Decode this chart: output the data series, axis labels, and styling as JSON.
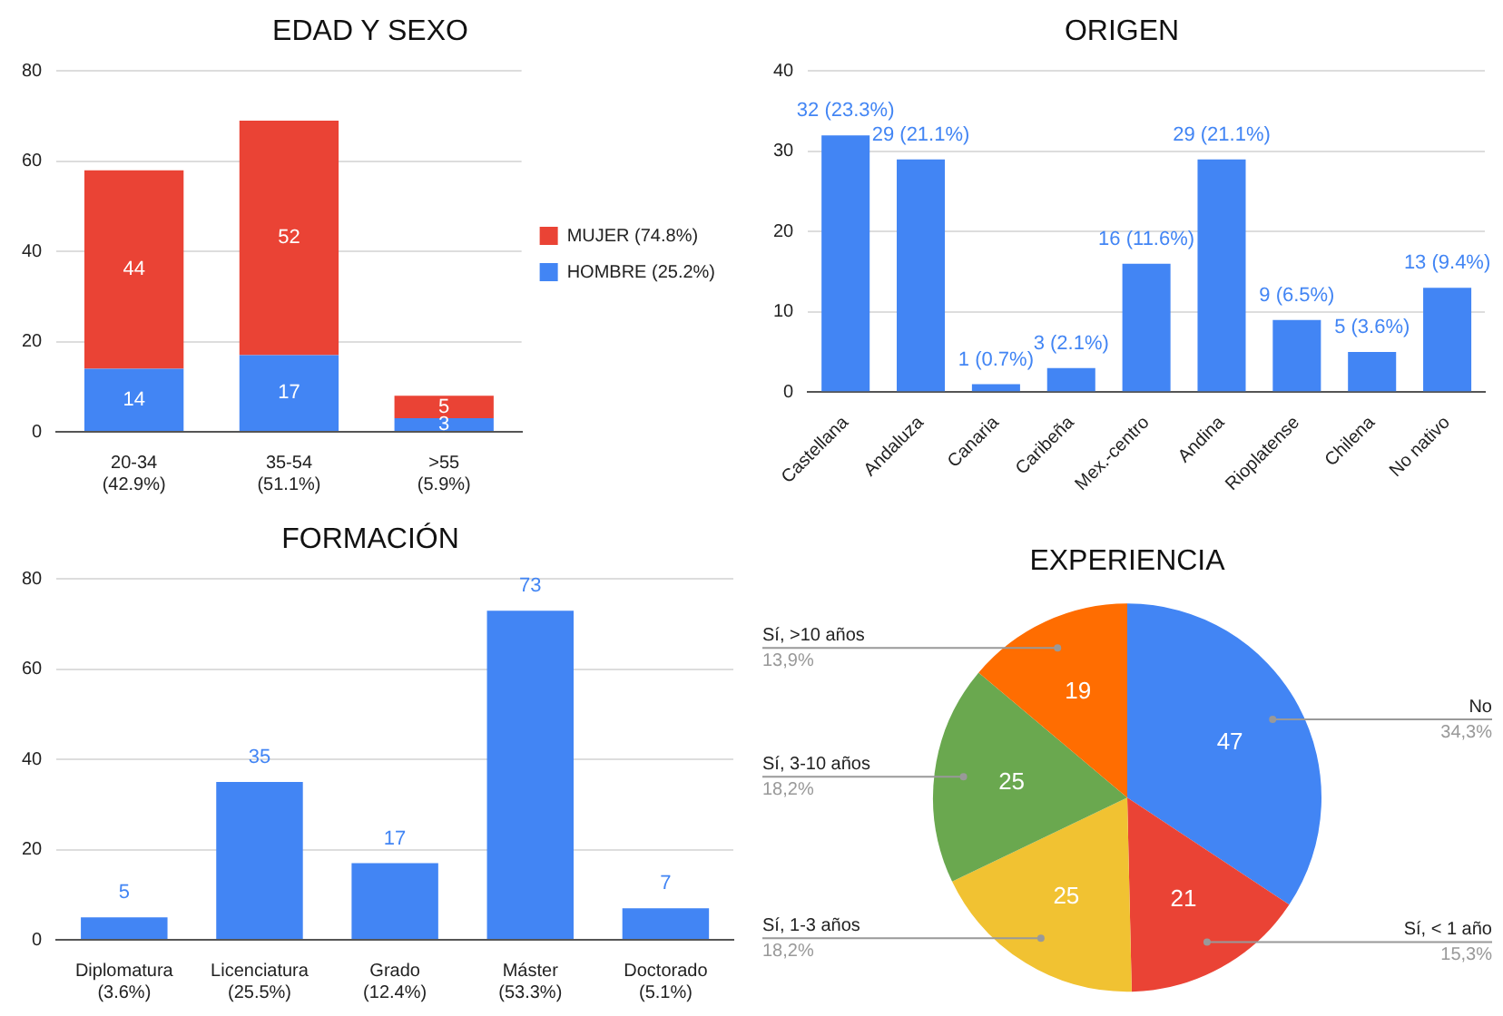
{
  "chart_data": [
    {
      "type": "bar",
      "title": "EDAD Y SEXO",
      "categories": [
        "20-34\n(42.9%)",
        "35-54\n(51.1%)",
        ">55\n(5.9%)"
      ],
      "stacked": true,
      "data_labels": true,
      "legend": "right",
      "grid": "y",
      "ylim": [
        0,
        80
      ],
      "yticks": [
        0,
        20,
        40,
        60,
        80
      ],
      "series": [
        {
          "name": "HOMBRE (25.2%)",
          "color": "#4285f4",
          "values": [
            14,
            17,
            3
          ]
        },
        {
          "name": "MUJER (74.8%)",
          "color": "#ea4335",
          "values": [
            44,
            52,
            5
          ]
        }
      ]
    },
    {
      "type": "bar",
      "title": "ORIGEN",
      "categories": [
        "Castellana",
        "Andaluza",
        "Canaria",
        "Caribeña",
        "Mex.-centro",
        "Andina",
        "Rioplatense",
        "Chilena",
        "No nativo"
      ],
      "grid": "y",
      "ylim": [
        0,
        40
      ],
      "yticks": [
        0,
        10,
        20,
        30,
        40
      ],
      "series": [
        {
          "color": "#4285f4",
          "values": [
            32,
            29,
            1,
            3,
            16,
            29,
            9,
            5,
            13
          ],
          "value_labels": [
            "32 (23.3%)",
            "29 (21.1%)",
            "1 (0.7%)",
            "3 (2.1%)",
            "16 (11.6%)",
            "29 (21.1%)",
            "9 (6.5%)",
            "5 (3.6%)",
            "13 (9.4%)"
          ]
        }
      ]
    },
    {
      "type": "bar",
      "title": "FORMACIÓN",
      "categories": [
        "Diplomatura\n(3.6%)",
        "Licenciatura\n(25.5%)",
        "Grado\n(12.4%)",
        "Máster\n(53.3%)",
        "Doctorado\n(5.1%)"
      ],
      "data_labels": true,
      "grid": "y",
      "ylim": [
        0,
        80
      ],
      "yticks": [
        0,
        20,
        40,
        60,
        80
      ],
      "series": [
        {
          "color": "#4285f4",
          "values": [
            5,
            35,
            17,
            73,
            7
          ]
        }
      ]
    },
    {
      "type": "pie",
      "title": "EXPERIENCIA",
      "categories": [
        "No\n34,3%",
        "Sí, < 1 año\n15,3%",
        "Sí, 1-3 años\n18,2%",
        "Sí, 3-10 años\n18,2%",
        "Sí, >10 años\n13,9%"
      ],
      "values": [
        47,
        21,
        25,
        25,
        19
      ],
      "colors": [
        "#4285f4",
        "#ea4335",
        "#f1c232",
        "#6aa84f",
        "#ff6d01"
      ],
      "data_labels": true
    }
  ]
}
